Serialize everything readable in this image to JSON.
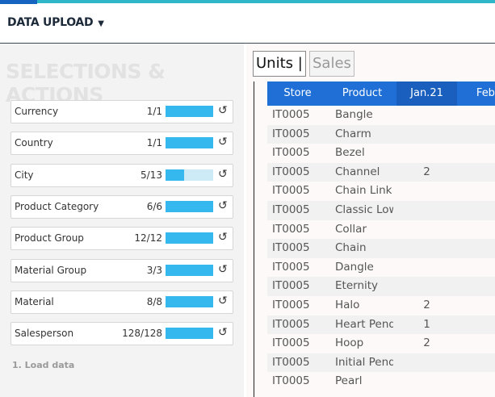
{
  "header": {
    "title": "DATA UPLOAD"
  },
  "selections": {
    "title": "SELECTIONS & ACTIONS",
    "items": [
      {
        "label": "Currency",
        "count": "1/1"
      },
      {
        "label": "Country",
        "count": "1/1"
      },
      {
        "label": "City",
        "count": "5/13"
      },
      {
        "label": "Product Category",
        "count": "6/6"
      },
      {
        "label": "Product Group",
        "count": "12/12"
      },
      {
        "label": "Material Group",
        "count": "3/3"
      },
      {
        "label": "Material",
        "count": "8/8"
      },
      {
        "label": "Salesperson",
        "count": "128/128"
      }
    ],
    "footer": "1. Load data"
  },
  "tabs": [
    "Units |",
    "Sales"
  ],
  "table": {
    "columns": [
      "Store",
      "Product",
      "Jan.21",
      "Feb."
    ],
    "rows": [
      [
        "IT0005",
        "Bangle",
        null
      ],
      [
        "IT0005",
        "Charm",
        null
      ],
      [
        "IT0005",
        "Bezel",
        null
      ],
      [
        "IT0005",
        "Channel",
        "2"
      ],
      [
        "IT0005",
        "Chain Link",
        null
      ],
      [
        "IT0005",
        "Classic Low",
        null
      ],
      [
        "IT0005",
        "Collar",
        null
      ],
      [
        "IT0005",
        "Chain",
        null
      ],
      [
        "IT0005",
        "Dangle",
        null
      ],
      [
        "IT0005",
        "Eternity",
        null
      ],
      [
        "IT0005",
        "Halo",
        "2"
      ],
      [
        "IT0005",
        "Heart Penda",
        "1"
      ],
      [
        "IT0005",
        "Hoop",
        "2"
      ],
      [
        "IT0005",
        "Initial Penda",
        null
      ],
      [
        "IT0005",
        "Pearl",
        null
      ]
    ]
  }
}
